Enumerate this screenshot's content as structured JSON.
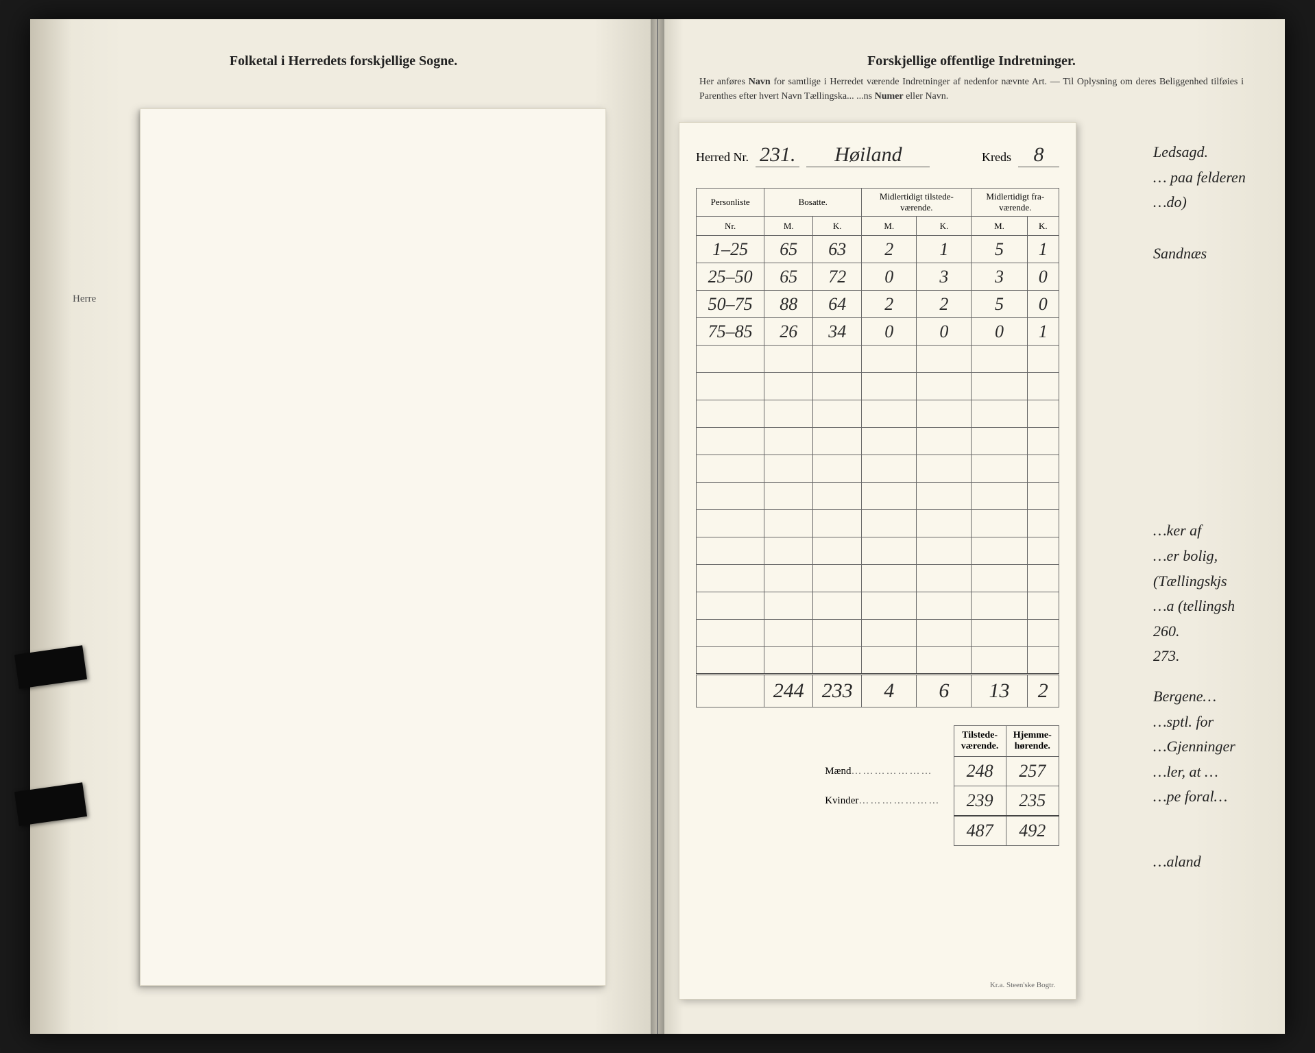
{
  "left": {
    "heading": "Folketal i Herredets forskjellige Sogne.",
    "side_label": "Herre"
  },
  "right": {
    "heading": "Forskjellige offentlige Indretninger.",
    "subtext_prefix": "Her anføres ",
    "subtext_bold1": "Navn",
    "subtext_mid": " for samtlige i Herredet værende Indretninger af nedenfor nævnte Art. — Til Oplysning om deres Beliggenhed tilføies i Parenthes efter hvert Navn Tællingska... ...ns ",
    "subtext_bold2": "Numer",
    "subtext_suffix": " eller Navn."
  },
  "census": {
    "label_herred": "Herred Nr.",
    "herred_nr": "231.",
    "herred_name": "Høiland",
    "label_kreds": "Kreds",
    "kreds_nr": "8",
    "columns": {
      "personliste": "Personliste",
      "nr": "Nr.",
      "bosatte": "Bosatte.",
      "midl_tilstede": "Midlertidigt tilstede-\nværende.",
      "midl_fra": "Midlertidigt fra-\nværende.",
      "m": "M.",
      "k": "K."
    },
    "rows": [
      {
        "nr": "1–25",
        "bm": "65",
        "bk": "63",
        "tm": "2",
        "tk": "1",
        "fm": "5",
        "fk": "1"
      },
      {
        "nr": "25–50",
        "bm": "65",
        "bk": "72",
        "tm": "0",
        "tk": "3",
        "fm": "3",
        "fk": "0"
      },
      {
        "nr": "50–75",
        "bm": "88",
        "bk": "64",
        "tm": "2",
        "tk": "2",
        "fm": "5",
        "fk": "0"
      },
      {
        "nr": "75–85",
        "bm": "26",
        "bk": "34",
        "tm": "0",
        "tk": "0",
        "fm": "0",
        "fk": "1"
      }
    ],
    "empty_row_count": 12,
    "totals": {
      "bm": "244",
      "bk": "233",
      "tm": "4",
      "tk": "6",
      "fm": "13",
      "fk": "2"
    },
    "summary": {
      "col_tilstede": "Tilstede-\nværende.",
      "col_hjemme": "Hjemme-\nhørende.",
      "maend_label": "Mænd",
      "kvinder_label": "Kvinder",
      "maend": {
        "tilstede": "248",
        "hjemme": "257"
      },
      "kvinder": {
        "tilstede": "239",
        "hjemme": "235"
      },
      "total": {
        "tilstede": "487",
        "hjemme": "492"
      }
    },
    "footer": "Kr.a.  Steen'ske Bogtr."
  },
  "margin": {
    "n1": "Ledsagd.",
    "n2": "… paa felderen",
    "n3": "…do)",
    "n4": "Sandnæs",
    "n5": "…ker af",
    "n6": "…er bolig,",
    "n7": "(Tællingskjs",
    "n8": "…a (tellingsh",
    "n9": "260.",
    "n10": "273.",
    "n11": "Bergene…",
    "n12": "…sptl. for",
    "n13": "…Gjenninger",
    "n14": "…ler, at …",
    "n15": "…pe foral…",
    "n16": "…aland"
  },
  "style": {
    "paper_bg": "#f0ece0",
    "sheet_bg": "#faf7ec",
    "ink": "#222222",
    "border": "#666666",
    "hand_font": "cursive",
    "print_font": "serif",
    "heading_fontsize": 20,
    "body_fontsize": 14,
    "hand_fontsize": 28
  }
}
